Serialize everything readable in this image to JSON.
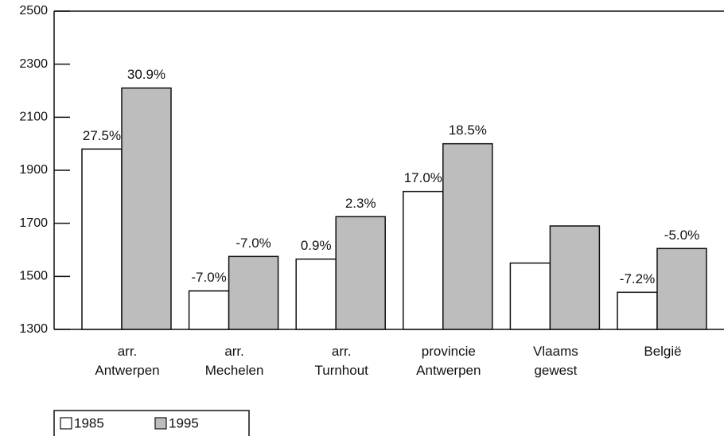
{
  "chart_data": {
    "type": "bar",
    "categories": [
      "arr. Antwerpen",
      "arr. Mechelen",
      "arr. Turnhout",
      "provincie Antwerpen",
      "Vlaams gewest",
      "België"
    ],
    "series": [
      {
        "name": "1985",
        "color": "#ffffff",
        "values": [
          1980,
          1445,
          1565,
          1820,
          1550,
          1440
        ],
        "labels": [
          "27.5%",
          "-7.0%",
          "0.9%",
          "17.0%",
          null,
          "-7.2%"
        ]
      },
      {
        "name": "1995",
        "color": "#bdbdbd",
        "values": [
          2210,
          1575,
          1725,
          2000,
          1690,
          1605
        ],
        "labels": [
          "30.9%",
          "-7.0%",
          "2.3%",
          "18.5%",
          null,
          "-5.0%"
        ]
      }
    ],
    "ylim": [
      1300,
      2500
    ],
    "yticks": [
      1300,
      1500,
      1700,
      1900,
      2100,
      2300,
      2500
    ],
    "legend": "bottom-left"
  }
}
